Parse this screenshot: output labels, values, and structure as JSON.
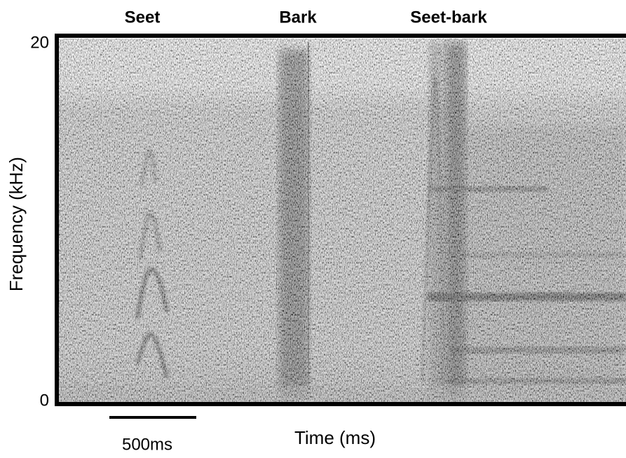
{
  "chart_data": {
    "type": "spectrogram",
    "annotations": [
      "Seet",
      "Bark",
      "Seet-bark"
    ],
    "scale_bar_label": "500ms",
    "xlabel": "Time (ms)",
    "ylabel": "Frequency (kHz)",
    "ylim": [
      0,
      20
    ],
    "yticks": [
      0,
      20
    ]
  }
}
